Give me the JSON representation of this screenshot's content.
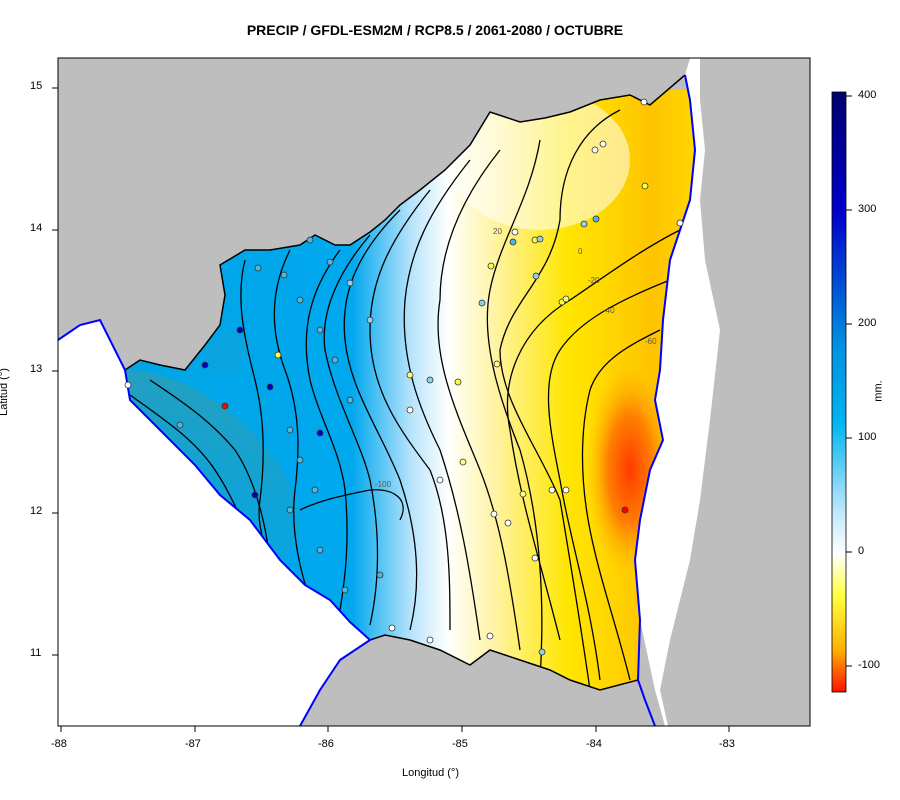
{
  "title": "PRECIP / GFDL-ESM2M / RCP8.5 / 2061-2080 / OCTUBRE",
  "xlabel": "Longitud (°)",
  "ylabel": "Latitud (°)",
  "x_ticks": [
    "-88",
    "-87",
    "-86",
    "-85",
    "-84",
    "-83"
  ],
  "y_ticks": [
    "15",
    "14",
    "13",
    "12",
    "11"
  ],
  "colorbar": {
    "unit": "mm.",
    "ticks": [
      "400",
      "300",
      "200",
      "100",
      "0",
      "-100"
    ]
  },
  "contour_labels": [
    "20",
    "0",
    "-20",
    "-40",
    "-60",
    "-100"
  ],
  "colors": {
    "land_outside": "#bebebe",
    "sea": "#ffffff",
    "coastline": "#0000ff",
    "wet": "#00a5e6",
    "dry": "#ffe600",
    "very_dry": "#ff2000"
  },
  "chart_data": {
    "type": "heatmap",
    "title": "PRECIP / GFDL-ESM2M / RCP8.5 / 2061-2080 / OCTUBRE",
    "xlabel": "Longitud (°)",
    "ylabel": "Latitud (°)",
    "xlim": [
      -88,
      -82.4
    ],
    "ylim": [
      10.5,
      15.2
    ],
    "colorbar_range": [
      -120,
      400
    ],
    "unit": "mm."
  }
}
